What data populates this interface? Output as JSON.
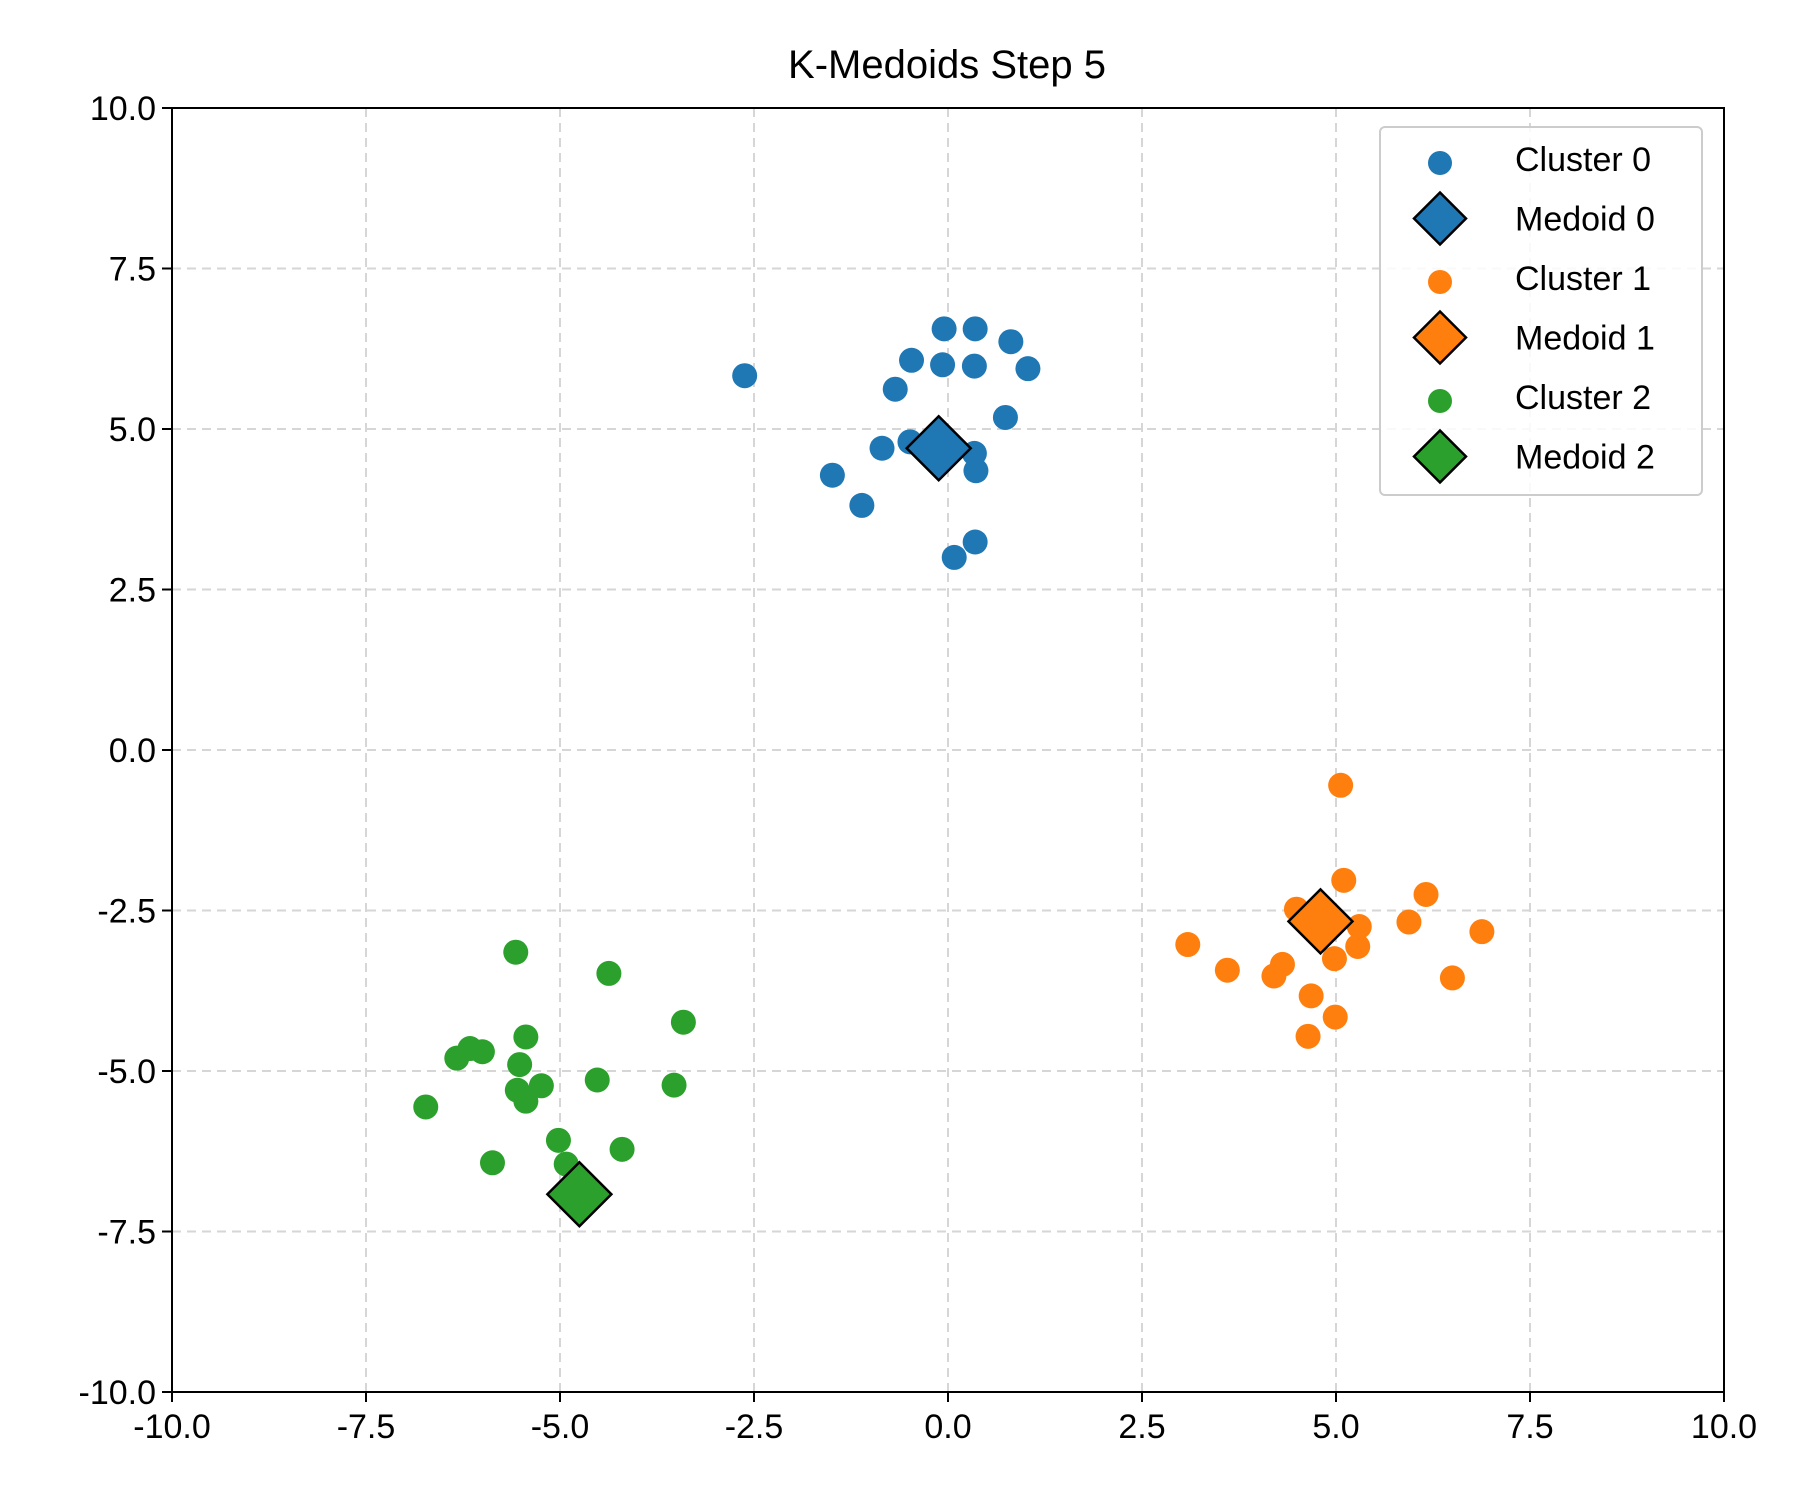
{
  "chart_data": {
    "type": "scatter",
    "title": "K-Medoids Step 5",
    "xlabel": "",
    "ylabel": "",
    "xlim": [
      -10,
      10
    ],
    "ylim": [
      -10,
      10
    ],
    "x_ticks": [
      "-10.0",
      "-7.5",
      "-5.0",
      "-2.5",
      "0.0",
      "2.5",
      "5.0",
      "7.5",
      "10.0"
    ],
    "y_ticks": [
      "10.0",
      "7.5",
      "5.0",
      "2.5",
      "0.0",
      "-2.5",
      "-5.0",
      "-7.5",
      "-10.0"
    ],
    "grid": true,
    "legend_position": "top-right",
    "series": [
      {
        "name": "Cluster 0",
        "kind": "points",
        "color": "#1f77b4",
        "points": [
          [
            -2.62,
            5.83
          ],
          [
            -0.05,
            6.56
          ],
          [
            0.35,
            6.56
          ],
          [
            0.81,
            6.36
          ],
          [
            -0.47,
            6.07
          ],
          [
            -0.07,
            6.0
          ],
          [
            0.34,
            5.98
          ],
          [
            1.03,
            5.94
          ],
          [
            -0.68,
            5.62
          ],
          [
            0.74,
            5.18
          ],
          [
            -0.49,
            4.8
          ],
          [
            -0.85,
            4.7
          ],
          [
            0.34,
            4.62
          ],
          [
            0.36,
            4.35
          ],
          [
            -1.49,
            4.28
          ],
          [
            -1.11,
            3.81
          ],
          [
            0.35,
            3.24
          ],
          [
            0.08,
            3.0
          ]
        ]
      },
      {
        "name": "Medoid 0",
        "kind": "medoid",
        "color": "#1f77b4",
        "points": [
          [
            -0.12,
            4.7
          ]
        ]
      },
      {
        "name": "Cluster 1",
        "kind": "points",
        "color": "#ff7f0e",
        "points": [
          [
            5.06,
            -0.55
          ],
          [
            5.1,
            -2.03
          ],
          [
            6.16,
            -2.25
          ],
          [
            4.49,
            -2.48
          ],
          [
            5.3,
            -2.75
          ],
          [
            5.94,
            -2.68
          ],
          [
            6.88,
            -2.83
          ],
          [
            3.09,
            -3.03
          ],
          [
            5.28,
            -3.06
          ],
          [
            4.98,
            -3.25
          ],
          [
            4.31,
            -3.34
          ],
          [
            3.6,
            -3.43
          ],
          [
            4.2,
            -3.52
          ],
          [
            6.5,
            -3.55
          ],
          [
            4.68,
            -3.83
          ],
          [
            4.99,
            -4.16
          ],
          [
            4.64,
            -4.46
          ]
        ]
      },
      {
        "name": "Medoid 1",
        "kind": "medoid",
        "color": "#ff7f0e",
        "points": [
          [
            4.8,
            -2.67
          ]
        ]
      },
      {
        "name": "Cluster 2",
        "kind": "points",
        "color": "#2ca02c",
        "points": [
          [
            -5.57,
            -3.15
          ],
          [
            -4.37,
            -3.48
          ],
          [
            -3.41,
            -4.24
          ],
          [
            -5.44,
            -4.47
          ],
          [
            -6.16,
            -4.65
          ],
          [
            -6.0,
            -4.7
          ],
          [
            -6.33,
            -4.8
          ],
          [
            -5.52,
            -4.9
          ],
          [
            -4.52,
            -5.14
          ],
          [
            -3.53,
            -5.22
          ],
          [
            -5.24,
            -5.23
          ],
          [
            -5.55,
            -5.3
          ],
          [
            -5.44,
            -5.47
          ],
          [
            -6.73,
            -5.56
          ],
          [
            -5.02,
            -6.08
          ],
          [
            -4.2,
            -6.22
          ],
          [
            -5.87,
            -6.43
          ],
          [
            -4.92,
            -6.45
          ]
        ]
      },
      {
        "name": "Medoid 2",
        "kind": "medoid",
        "color": "#2ca02c",
        "points": [
          [
            -4.75,
            -6.92
          ]
        ]
      }
    ]
  }
}
